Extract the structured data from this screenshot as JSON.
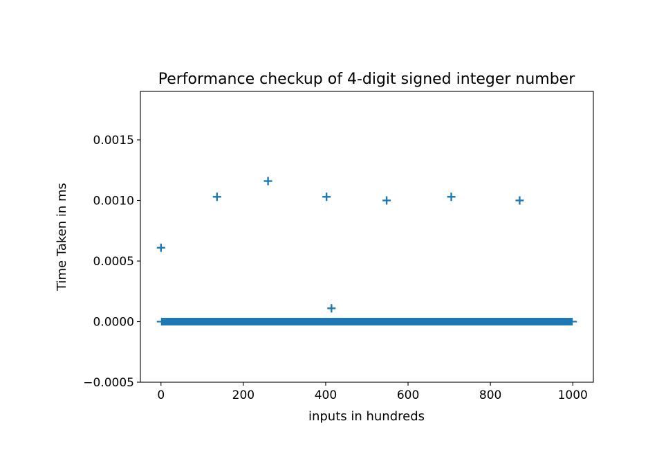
{
  "chart_data": {
    "type": "scatter",
    "title": "Performance checkup of 4-digit signed integer number",
    "xlabel": "inputs in hundreds",
    "ylabel": "Time Taken in ms",
    "xlim": [
      -50,
      1050
    ],
    "ylim": [
      -0.0005,
      0.0019
    ],
    "xticks": [
      0,
      200,
      400,
      600,
      800,
      1000
    ],
    "xtick_labels": [
      "0",
      "200",
      "400",
      "600",
      "800",
      "1000"
    ],
    "yticks": [
      -0.0005,
      0.0,
      0.0005,
      0.001,
      0.0015
    ],
    "ytick_labels": [
      "−0.0005",
      "0.0000",
      "0.0005",
      "0.0010",
      "0.0015"
    ],
    "grid": false,
    "legend": "none",
    "marker": "+",
    "color": "#1f77b4",
    "baseline": {
      "x_from": 0,
      "x_to": 1000,
      "y": 0.0
    },
    "points": [
      {
        "x": 0,
        "y": 0.00061
      },
      {
        "x": 136,
        "y": 0.00103
      },
      {
        "x": 260,
        "y": 0.00116
      },
      {
        "x": 402,
        "y": 0.00103
      },
      {
        "x": 414,
        "y": 0.00011
      },
      {
        "x": 548,
        "y": 0.001
      },
      {
        "x": 705,
        "y": 0.00103
      },
      {
        "x": 871,
        "y": 0.001
      }
    ]
  }
}
